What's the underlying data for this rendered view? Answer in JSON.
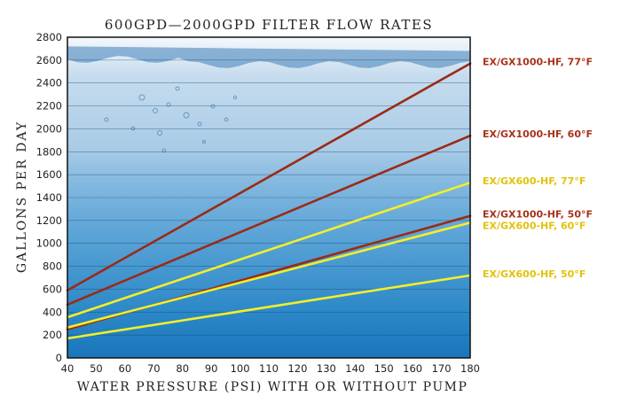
{
  "chart_data": {
    "type": "line",
    "title": "600GPD—2000GPD FILTER FLOW RATES",
    "xlabel": "WATER PRESSURE (PSI) WITH OR WITHOUT PUMP",
    "ylabel": "GALLONS PER DAY",
    "xlim": [
      40,
      180
    ],
    "ylim": [
      0,
      2800
    ],
    "x_ticks": [
      "40",
      "50",
      "60",
      "70",
      "80",
      "90",
      "100",
      "110",
      "120",
      "130",
      "140",
      "150",
      "160",
      "170",
      "180"
    ],
    "y_ticks": [
      "0",
      "200",
      "400",
      "600",
      "800",
      "1000",
      "1200",
      "1400",
      "1600",
      "1800",
      "2000",
      "2200",
      "2400",
      "2600",
      "2800"
    ],
    "grid": "horizontal",
    "legend": "right (labels at line ends)",
    "series": [
      {
        "name": "EX/GX1000-HF, 77°F",
        "color": "#9b2a16",
        "x": [
          40,
          180
        ],
        "y": [
          590,
          2570
        ]
      },
      {
        "name": "EX/GX1000-HF, 60°F",
        "color": "#9b2a16",
        "x": [
          40,
          180
        ],
        "y": [
          465,
          1940
        ]
      },
      {
        "name": "EX/GX600-HF, 77°F",
        "color": "#f2ef2a",
        "x": [
          40,
          180
        ],
        "y": [
          355,
          1530
        ]
      },
      {
        "name": "EX/GX1000-HF, 50°F",
        "color": "#9b2a16",
        "x": [
          40,
          180
        ],
        "y": [
          250,
          1240
        ]
      },
      {
        "name": "EX/GX600-HF, 60°F",
        "color": "#f2ef2a",
        "x": [
          40,
          180
        ],
        "y": [
          265,
          1180
        ]
      },
      {
        "name": "EX/GX600-HF, 50°F",
        "color": "#f2ef2a",
        "x": [
          40,
          180
        ],
        "y": [
          170,
          720
        ]
      }
    ],
    "label_colors": {
      "EX/GX1000-HF, 77°F": "#a8321b",
      "EX/GX1000-HF, 60°F": "#a8321b",
      "EX/GX600-HF, 77°F": "#e2c20a",
      "EX/GX1000-HF, 50°F": "#a8321b",
      "EX/GX600-HF, 60°F": "#e2c20a",
      "EX/GX600-HF, 50°F": "#e2c20a"
    },
    "colors": {
      "water_top": "#dfeaf4",
      "water_bottom": "#1a78be",
      "text": "#222222"
    }
  }
}
